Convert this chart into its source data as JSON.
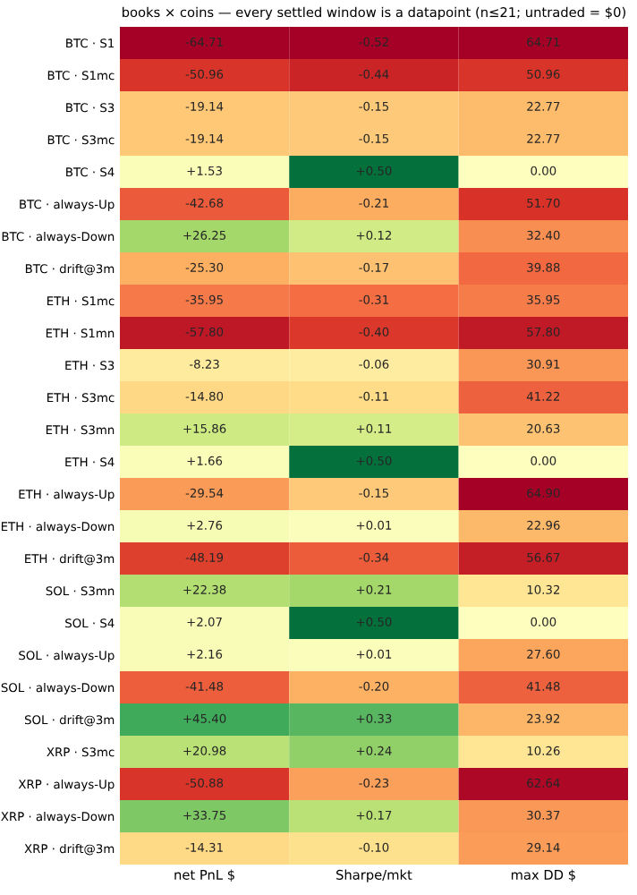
{
  "chart_data": {
    "type": "heatmap",
    "title": "books × coins — every settled window is a datapoint (n≤21; untraded = $0)",
    "categories": [
      "net PnL $",
      "Sharpe/mkt",
      "max DD $"
    ],
    "y_categories": [
      "BTC · S1",
      "BTC · S1mc",
      "BTC · S3",
      "BTC · S3mc",
      "BTC · S4",
      "BTC · always-Up",
      "BTC · always-Down",
      "BTC · drift@3m",
      "ETH · S1mc",
      "ETH · S1mn",
      "ETH · S3",
      "ETH · S3mc",
      "ETH · S3mn",
      "ETH · S4",
      "ETH · always-Up",
      "ETH · always-Down",
      "ETH · drift@3m",
      "SOL · S3mn",
      "SOL · S4",
      "SOL · always-Up",
      "SOL · always-Down",
      "SOL · drift@3m",
      "XRP · S3mc",
      "XRP · always-Up",
      "XRP · always-Down",
      "XRP · drift@3m"
    ],
    "cells": [
      [
        -64.71,
        -0.52,
        64.71
      ],
      [
        -50.96,
        -0.44,
        50.96
      ],
      [
        -19.14,
        -0.15,
        22.77
      ],
      [
        -19.14,
        -0.15,
        22.77
      ],
      [
        1.53,
        0.5,
        0.0
      ],
      [
        -42.68,
        -0.21,
        51.7
      ],
      [
        26.25,
        0.12,
        32.4
      ],
      [
        -25.3,
        -0.17,
        39.88
      ],
      [
        -35.95,
        -0.31,
        35.95
      ],
      [
        -57.8,
        -0.4,
        57.8
      ],
      [
        -8.23,
        -0.06,
        30.91
      ],
      [
        -14.8,
        -0.11,
        41.22
      ],
      [
        15.86,
        0.11,
        20.63
      ],
      [
        1.66,
        0.5,
        0.0
      ],
      [
        -29.54,
        -0.15,
        64.9
      ],
      [
        2.76,
        0.01,
        22.96
      ],
      [
        -48.19,
        -0.34,
        56.67
      ],
      [
        22.38,
        0.21,
        10.32
      ],
      [
        2.07,
        0.5,
        0.0
      ],
      [
        2.16,
        0.01,
        27.6
      ],
      [
        -41.48,
        -0.2,
        41.48
      ],
      [
        45.4,
        0.33,
        23.92
      ],
      [
        20.98,
        0.24,
        10.26
      ],
      [
        -50.88,
        -0.23,
        62.64
      ],
      [
        33.75,
        0.17,
        30.37
      ],
      [
        -14.31,
        -0.1,
        29.14
      ]
    ],
    "cell_labels": [
      [
        "-64.71",
        "-0.52",
        "64.71"
      ],
      [
        "-50.96",
        "-0.44",
        "50.96"
      ],
      [
        "-19.14",
        "-0.15",
        "22.77"
      ],
      [
        "-19.14",
        "-0.15",
        "22.77"
      ],
      [
        "+1.53",
        "+0.50",
        "0.00"
      ],
      [
        "-42.68",
        "-0.21",
        "51.70"
      ],
      [
        "+26.25",
        "+0.12",
        "32.40"
      ],
      [
        "-25.30",
        "-0.17",
        "39.88"
      ],
      [
        "-35.95",
        "-0.31",
        "35.95"
      ],
      [
        "-57.80",
        "-0.40",
        "57.80"
      ],
      [
        "-8.23",
        "-0.06",
        "30.91"
      ],
      [
        "-14.80",
        "-0.11",
        "41.22"
      ],
      [
        "+15.86",
        "+0.11",
        "20.63"
      ],
      [
        "+1.66",
        "+0.50",
        "0.00"
      ],
      [
        "-29.54",
        "-0.15",
        "64.90"
      ],
      [
        "+2.76",
        "+0.01",
        "22.96"
      ],
      [
        "-48.19",
        "-0.34",
        "56.67"
      ],
      [
        "+22.38",
        "+0.21",
        "10.32"
      ],
      [
        "+2.07",
        "+0.50",
        "0.00"
      ],
      [
        "+2.16",
        "+0.01",
        "27.60"
      ],
      [
        "-41.48",
        "-0.20",
        "41.48"
      ],
      [
        "+45.40",
        "+0.33",
        "23.92"
      ],
      [
        "+20.98",
        "+0.24",
        "10.26"
      ],
      [
        "-50.88",
        "-0.23",
        "62.64"
      ],
      [
        "+33.75",
        "+0.17",
        "30.37"
      ],
      [
        "-14.31",
        "-0.10",
        "29.14"
      ]
    ]
  }
}
